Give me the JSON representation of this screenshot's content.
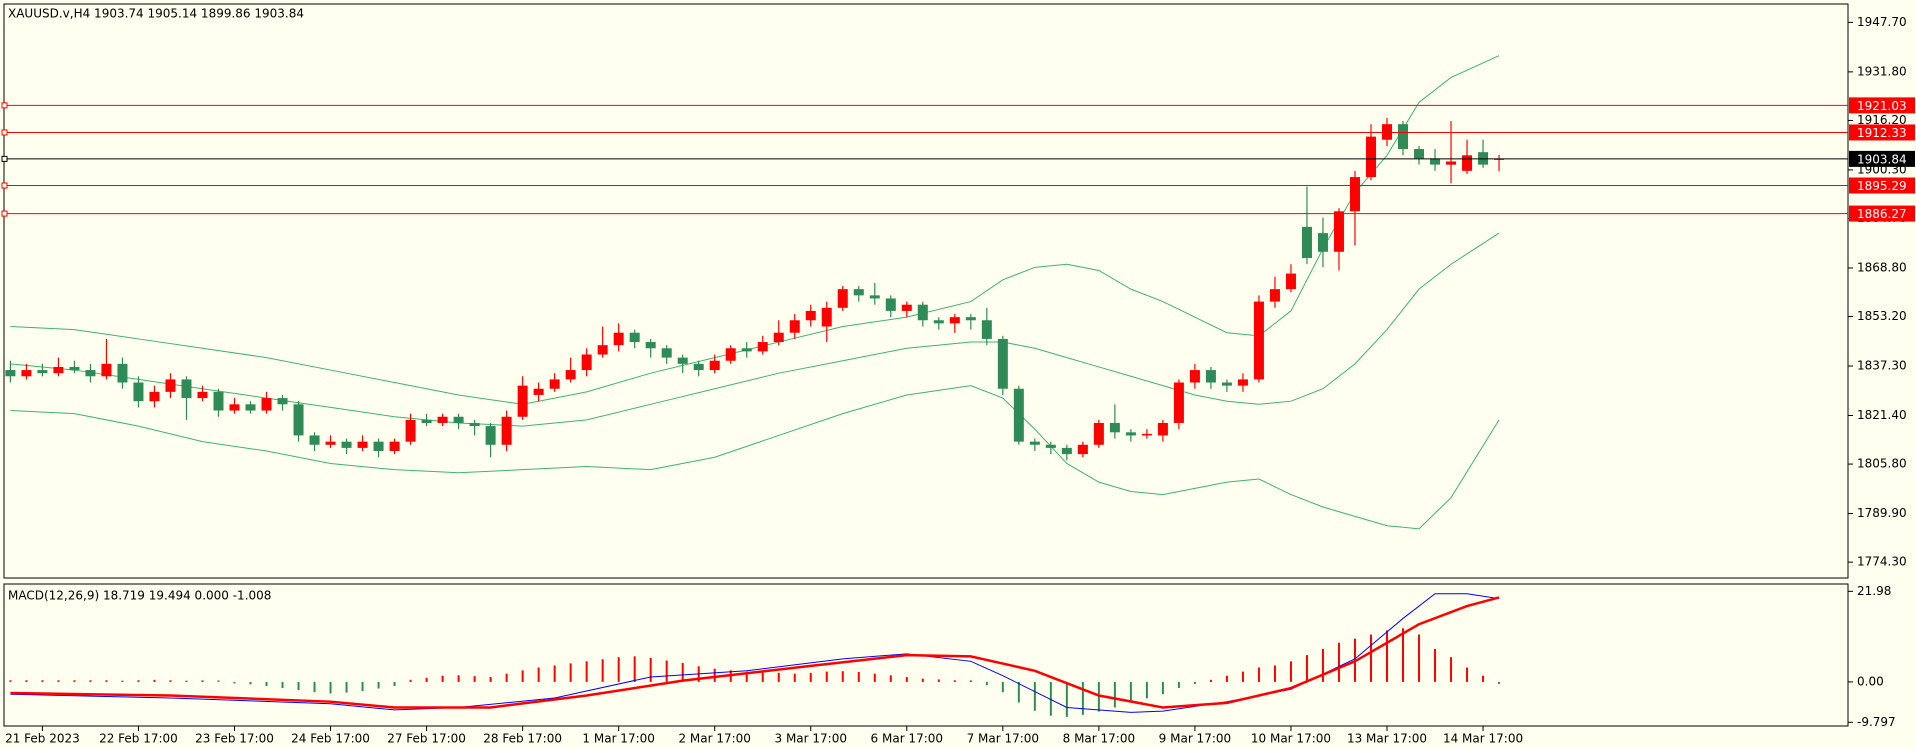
{
  "chart_data": [
    {
      "type": "candlestick",
      "title": "XAUUSD.v,H4  1903.74 1905.14 1899.86 1903.84",
      "open": [
        1836,
        1834,
        1836,
        1835,
        1837,
        1836,
        1834,
        1838,
        1832,
        1826,
        1829,
        1833,
        1827,
        1829,
        1823,
        1825,
        1823,
        1827,
        1825,
        1815,
        1812,
        1813,
        1811,
        1813,
        1810,
        1813,
        1820,
        1819,
        1821,
        1819,
        1818,
        1812,
        1821,
        1828,
        1830,
        1833,
        1836,
        1841,
        1844,
        1848,
        1845,
        1843,
        1840,
        1838,
        1836,
        1839,
        1843,
        1842,
        1845,
        1848,
        1852,
        1850,
        1856,
        1862,
        1860,
        1859,
        1855,
        1857,
        1852,
        1851,
        1853,
        1852,
        1846,
        1830,
        1813,
        1812,
        1811,
        1809,
        1812,
        1819,
        1816,
        1815,
        1815,
        1819,
        1832,
        1836,
        1832,
        1831,
        1833,
        1858,
        1862,
        1882,
        1880,
        1874,
        1887,
        1898,
        1910,
        1915,
        1907,
        1904,
        1902,
        1900,
        1906,
        1903.74
      ],
      "high": [
        1839,
        1838,
        1838,
        1840,
        1839,
        1838,
        1846,
        1840,
        1834,
        1831,
        1835,
        1834,
        1831,
        1830,
        1827,
        1826,
        1829,
        1828,
        1826,
        1816,
        1815,
        1814,
        1815,
        1814,
        1814,
        1822,
        1822,
        1822,
        1822,
        1820,
        1819,
        1823,
        1834,
        1832,
        1835,
        1840,
        1843,
        1850,
        1851,
        1849,
        1846,
        1844,
        1841,
        1839,
        1841,
        1844,
        1845,
        1847,
        1852,
        1854,
        1857,
        1858,
        1863,
        1863,
        1864,
        1860,
        1858,
        1858,
        1853,
        1854,
        1854,
        1856,
        1847,
        1831,
        1814,
        1813,
        1812,
        1813,
        1820,
        1825,
        1817,
        1817,
        1820,
        1833,
        1838,
        1837,
        1833,
        1835,
        1860,
        1866,
        1870,
        1895,
        1885,
        1888,
        1900,
        1915,
        1917,
        1916,
        1908,
        1907,
        1916,
        1910,
        1910,
        1905.14
      ],
      "low": [
        1832,
        1833,
        1834,
        1834,
        1835,
        1832,
        1833,
        1830,
        1824,
        1824,
        1827,
        1820,
        1826,
        1821,
        1822,
        1822,
        1822,
        1823,
        1813,
        1810,
        1811,
        1809,
        1810,
        1808,
        1809,
        1812,
        1818,
        1818,
        1817,
        1815,
        1808,
        1810,
        1820,
        1826,
        1829,
        1832,
        1834,
        1840,
        1842,
        1843,
        1840,
        1838,
        1835,
        1834,
        1835,
        1838,
        1840,
        1841,
        1844,
        1846,
        1850,
        1845,
        1855,
        1858,
        1857,
        1853,
        1853,
        1850,
        1849,
        1848,
        1849,
        1844,
        1828,
        1812,
        1810,
        1809,
        1807,
        1808,
        1811,
        1814,
        1813,
        1814,
        1813,
        1817,
        1830,
        1830,
        1829,
        1829,
        1832,
        1856,
        1861,
        1870,
        1869,
        1868,
        1876,
        1897,
        1908,
        1905,
        1902,
        1900,
        1896,
        1899,
        1901,
        1899.86
      ],
      "close": [
        1834,
        1836,
        1835,
        1837,
        1836,
        1834,
        1838,
        1832,
        1826,
        1829,
        1833,
        1827,
        1829,
        1823,
        1825,
        1823,
        1827,
        1825,
        1815,
        1812,
        1813,
        1811,
        1813,
        1810,
        1813,
        1820,
        1819,
        1821,
        1819,
        1818,
        1812,
        1821,
        1831,
        1830,
        1833,
        1836,
        1841,
        1844,
        1848,
        1845,
        1843,
        1840,
        1838,
        1836,
        1839,
        1843,
        1842,
        1845,
        1848,
        1852,
        1855,
        1856,
        1862,
        1860,
        1859,
        1855,
        1857,
        1852,
        1851,
        1853,
        1852,
        1846,
        1830,
        1813,
        1812,
        1811,
        1809,
        1812,
        1819,
        1816,
        1815,
        1815.5,
        1819,
        1832,
        1836,
        1832,
        1831,
        1833,
        1858,
        1862,
        1867,
        1872,
        1874,
        1887,
        1898,
        1911,
        1915,
        1907,
        1904,
        1902,
        1903,
        1905,
        1902,
        1903.84
      ],
      "up_color": "#ff0000",
      "down_color": "#2e8b57",
      "bollinger": {
        "color": "#3cb371",
        "x": [
          0,
          4,
          8,
          12,
          16,
          20,
          24,
          28,
          32,
          36,
          40,
          44,
          48,
          52,
          56,
          60,
          62,
          64,
          66,
          68,
          70,
          72,
          74,
          76,
          78,
          80,
          82,
          84,
          86,
          88,
          90,
          93
        ],
        "upper": [
          1850,
          1849,
          1846,
          1843,
          1840,
          1836,
          1832,
          1828,
          1825,
          1829,
          1835,
          1840,
          1845,
          1850,
          1853,
          1858,
          1865,
          1869,
          1870,
          1868,
          1862,
          1858,
          1853,
          1848,
          1847,
          1855,
          1875,
          1893,
          1905,
          1922,
          1930,
          1937
        ],
        "middle": [
          1838,
          1836,
          1833,
          1830,
          1827,
          1824,
          1821,
          1819,
          1818,
          1820,
          1825,
          1830,
          1835,
          1839,
          1843,
          1845,
          1845,
          1843,
          1840,
          1837,
          1834,
          1831,
          1828,
          1826,
          1825,
          1826,
          1830,
          1838,
          1849,
          1862,
          1870,
          1880
        ],
        "lower": [
          1823,
          1822,
          1818,
          1813,
          1810,
          1806,
          1804,
          1803,
          1804,
          1805,
          1804,
          1808,
          1815,
          1822,
          1828,
          1831,
          1827,
          1817,
          1806,
          1800,
          1797,
          1796,
          1798,
          1800,
          1801,
          1796,
          1792,
          1789,
          1786,
          1785,
          1795,
          1820
        ]
      },
      "levels": [
        1921.03,
        1912.33,
        1895.29,
        1886.27
      ],
      "level_color": "#ff0000",
      "current_price": 1903.84,
      "current_color": "#000000",
      "xlim": [
        -0.4,
        114.8
      ],
      "ylim": [
        1769.2,
        1953.6
      ],
      "yticks": [
        {
          "value": 1947.7,
          "label": "1947.70"
        },
        {
          "value": 1931.8,
          "label": "1931.80"
        },
        {
          "value": 1916.2,
          "label": "1916.20"
        },
        {
          "value": 1900.3,
          "label": "1900.30"
        },
        {
          "value": 1884.7,
          "label": "1884.70"
        },
        {
          "value": 1868.8,
          "label": "1868.80"
        },
        {
          "value": 1853.2,
          "label": "1853.20"
        },
        {
          "value": 1837.3,
          "label": "1837.30"
        },
        {
          "value": 1821.4,
          "label": "1821.40"
        },
        {
          "value": 1805.8,
          "label": "1805.80"
        },
        {
          "value": 1789.9,
          "label": "1789.90"
        },
        {
          "value": 1774.3,
          "label": "1774.30"
        }
      ]
    },
    {
      "type": "macd",
      "title": "MACD(12,26,9) 18.719 19.494 0.000 -1.008",
      "histogram": [
        0.4,
        0.4,
        0.4,
        0.4,
        0.4,
        0.4,
        0.4,
        0.3,
        0.4,
        0.5,
        0.4,
        0.3,
        0.2,
        -0.2,
        -0.4,
        -0.6,
        -1.0,
        -1.5,
        -2.0,
        -2.5,
        -2.8,
        -2.6,
        -2.2,
        -1.6,
        -1.0,
        0.5,
        1.0,
        1.5,
        1.6,
        1.4,
        1.2,
        2.0,
        2.8,
        3.5,
        4.0,
        4.5,
        5.0,
        5.5,
        6.0,
        6.2,
        5.8,
        5.2,
        4.6,
        3.8,
        3.2,
        2.8,
        2.5,
        2.4,
        2.2,
        2.0,
        2.2,
        2.5,
        2.6,
        2.4,
        2.0,
        1.6,
        1.2,
        0.8,
        0.6,
        0.4,
        0.2,
        -0.8,
        -2.5,
        -5.0,
        -7.0,
        -8.2,
        -8.5,
        -8.0,
        -7.2,
        -6.2,
        -5.0,
        -4.0,
        -3.0,
        -1.5,
        -0.5,
        0.5,
        1.5,
        2.5,
        3.5,
        4.0,
        5.0,
        6.5,
        8.0,
        9.5,
        10.5,
        11.5,
        12.5,
        13.0,
        11.5,
        8.0,
        6.0,
        3.5,
        1.5,
        -0.5
      ],
      "up_color": "#ff0000",
      "down_color": "#2e8b57",
      "lines": [
        {
          "color": "#0000ff",
          "width": 1,
          "x": [
            0,
            10,
            20,
            24,
            28,
            34,
            40,
            46,
            52,
            56,
            60,
            62,
            66,
            70,
            72,
            76,
            80,
            84,
            87,
            89,
            91,
            93
          ],
          "values": [
            -3,
            -3.9,
            -5.3,
            -6.8,
            -6.2,
            -3.9,
            1.2,
            2.7,
            5.6,
            6.8,
            5,
            1.5,
            -6.2,
            -7.4,
            -7.1,
            -4.8,
            -1.8,
            5.6,
            15.4,
            21.4,
            21.4,
            20.2
          ]
        },
        {
          "color": "#ff0000",
          "width": 2.5,
          "x": [
            0,
            10,
            20,
            24,
            30,
            36,
            42,
            50,
            56,
            60,
            64,
            68,
            72,
            76,
            80,
            84,
            88,
            91,
            93
          ],
          "values": [
            -2.7,
            -3.3,
            -4.8,
            -6.2,
            -6.2,
            -3.3,
            0.3,
            3.9,
            6.5,
            6.2,
            2.7,
            -3.3,
            -6.2,
            -5.1,
            -1.5,
            5,
            14,
            18.4,
            20.5
          ]
        }
      ],
      "xlim": [
        -0.4,
        114.8
      ],
      "ylim": [
        -10.7,
        23.76
      ],
      "yticks": [
        21.98,
        {
          "value": 0,
          "label": "0.00"
        },
        -9.797
      ],
      "xticks": [
        {
          "value": 2,
          "label": "21 Feb 2023"
        },
        {
          "value": 8,
          "label": "22 Feb 17:00"
        },
        {
          "value": 14,
          "label": "23 Feb 17:00"
        },
        {
          "value": 20,
          "label": "24 Feb 17:00"
        },
        {
          "value": 26,
          "label": "27 Feb 17:00"
        },
        {
          "value": 32,
          "label": "28 Feb 17:00"
        },
        {
          "value": 38,
          "label": "1 Mar 17:00"
        },
        {
          "value": 44,
          "label": "2 Mar 17:00"
        },
        {
          "value": 50,
          "label": "3 Mar 17:00"
        },
        {
          "value": 56,
          "label": "6 Mar 17:00"
        },
        {
          "value": 62,
          "label": "7 Mar 17:00"
        },
        {
          "value": 68,
          "label": "8 Mar 17:00"
        },
        {
          "value": 74,
          "label": "9 Mar 17:00"
        },
        {
          "value": 80,
          "label": "10 Mar 17:00"
        },
        {
          "value": 86,
          "label": "13 Mar 17:00"
        },
        {
          "value": 92,
          "label": "14 Mar 17:00"
        }
      ]
    }
  ]
}
